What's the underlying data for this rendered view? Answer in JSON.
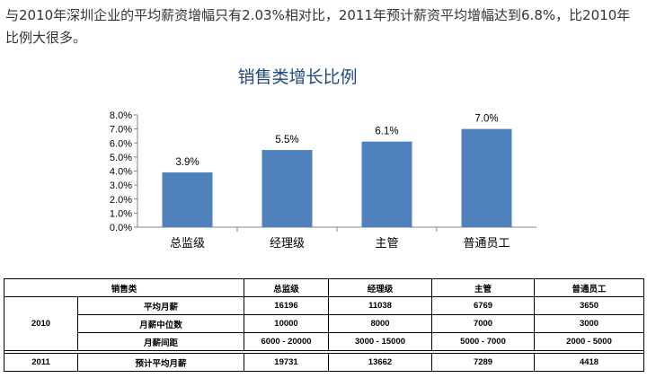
{
  "intro_text": "与2010年深圳企业的平均薪资增幅只有2.03%相对比，2011年预计薪资平均增幅达到6.8%，比2010年比例大很多。",
  "chart_data": {
    "type": "bar",
    "title": "销售类增长比例",
    "categories": [
      "总监级",
      "经理级",
      "主管",
      "普通员工"
    ],
    "values": [
      3.9,
      5.5,
      6.1,
      7.0
    ],
    "value_labels": [
      "3.9%",
      "5.5%",
      "6.1%",
      "7.0%"
    ],
    "ylim": [
      0,
      8
    ],
    "yticks": [
      "0.0%",
      "1.0%",
      "2.0%",
      "3.0%",
      "4.0%",
      "5.0%",
      "6.0%",
      "7.0%",
      "8.0%"
    ],
    "bar_color": "#4f81bd",
    "title_color": "#1f497d",
    "grid": false
  },
  "table": {
    "header": [
      "销售类",
      "总监级",
      "经理级",
      "主管",
      "普通员工"
    ],
    "group_2010": "2010",
    "group_2011": "2011",
    "rows_2010": [
      {
        "label": "平均月薪",
        "values": [
          "16196",
          "11038",
          "6769",
          "3650"
        ]
      },
      {
        "label": "月薪中位数",
        "values": [
          "10000",
          "8000",
          "7000",
          "3000"
        ]
      },
      {
        "label": "月薪间距",
        "values": [
          "6000 - 20000",
          "3000 - 15000",
          "5000 - 7000",
          "2000 - 5000"
        ]
      }
    ],
    "row_2011": {
      "label": "预计平均月薪",
      "values": [
        "19731",
        "13662",
        "7289",
        "4418"
      ]
    }
  }
}
